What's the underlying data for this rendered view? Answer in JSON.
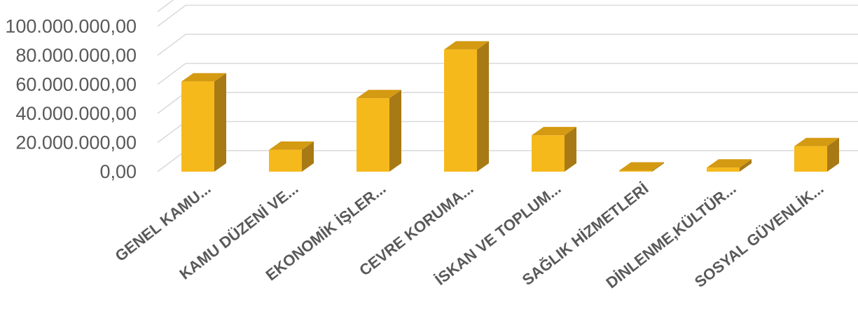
{
  "chart_data": {
    "type": "bar",
    "style": "3d-column",
    "categories": [
      "GENEL KAMU...",
      "KAMU DÜZENİ VE...",
      "EKONOMİK İŞLER...",
      "CEVRE KORUMA...",
      "İSKAN VE TOPLUM...",
      "SAĞLIK HİZMETLERİ",
      "DİNLENME,KÜLTÜR...",
      "SOSYAL GÜVENLİK..."
    ],
    "values": [
      62000000,
      15000000,
      50500000,
      84000000,
      25000000,
      700000,
      2800000,
      17500000
    ],
    "ylim": [
      0,
      110000000
    ],
    "yticks": [
      0,
      20000000,
      40000000,
      60000000,
      80000000,
      100000000
    ],
    "ytick_labels": [
      "0,00",
      "20.000.000,00",
      "40.000.000,00",
      "60.000.000,00",
      "80.000.000,00",
      "100.000.000,00"
    ],
    "title": "",
    "xlabel": "",
    "ylabel": "",
    "grid": true,
    "legend": "none",
    "colors": {
      "front": "#f5b91c",
      "top": "#d49a12",
      "side": "#a87a16"
    }
  }
}
